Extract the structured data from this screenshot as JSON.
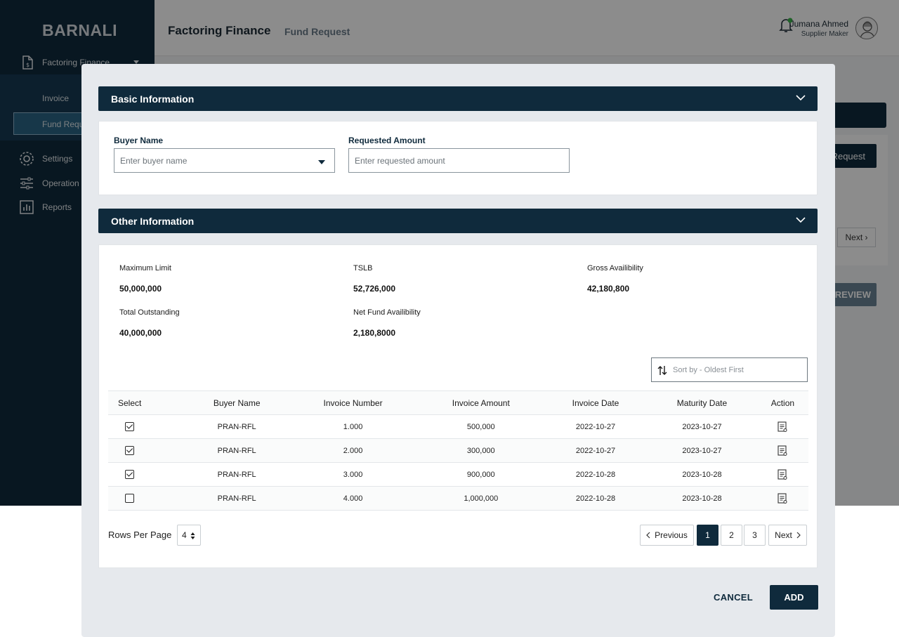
{
  "app": {
    "brand": "BARNALI",
    "title": "Factoring Finance",
    "subtitle": "Fund Request"
  },
  "sidebar": {
    "group_label": "Factoring Finance",
    "sub_items": [
      {
        "label": "Invoice"
      },
      {
        "label": "Fund Request"
      }
    ],
    "items": [
      {
        "label": "Settings",
        "icon": "gear-icon"
      },
      {
        "label": "Operation",
        "icon": "sliders-icon"
      },
      {
        "label": "Reports",
        "icon": "chart-icon"
      }
    ]
  },
  "user": {
    "name": "Jumana Ahmed",
    "role": "Supplier Maker",
    "notification_color": "#3ab54a"
  },
  "background": {
    "request_button": "Request",
    "next_button": "Next",
    "preview_button": "PREVIEW"
  },
  "modal": {
    "basic_section": {
      "title": "Basic Information",
      "buyer_name": {
        "label": "Buyer Name",
        "placeholder": "Enter buyer name"
      },
      "requested_amount": {
        "label": "Requested Amount",
        "placeholder": "Enter requested amount"
      }
    },
    "other_section": {
      "title": "Other Information",
      "stats": [
        {
          "label": "Maximum Limit",
          "value": "50,000,000"
        },
        {
          "label": "TSLB",
          "value": "52,726,000"
        },
        {
          "label": "Gross Availibility",
          "value": "42,180,800"
        },
        {
          "label": "Total Outstanding",
          "value": "40,000,000"
        },
        {
          "label": "Net Fund Availibility",
          "value": "2,180,8000"
        }
      ],
      "sort_placeholder": "Sort by - Oldest First",
      "table": {
        "columns": [
          "Select",
          "Buyer Name",
          "Invoice Number",
          "Invoice Amount",
          "Invoice Date",
          "Maturity Date",
          "Action"
        ],
        "rows": [
          {
            "selected": true,
            "buyer": "PRAN-RFL",
            "invoice_number": "1.000",
            "amount": "500,000",
            "invoice_date": "2022-10-27",
            "maturity_date": "2023-10-27"
          },
          {
            "selected": true,
            "buyer": "PRAN-RFL",
            "invoice_number": "2.000",
            "amount": "300,000",
            "invoice_date": "2022-10-27",
            "maturity_date": "2023-10-27"
          },
          {
            "selected": true,
            "buyer": "PRAN-RFL",
            "invoice_number": "3.000",
            "amount": "900,000",
            "invoice_date": "2022-10-28",
            "maturity_date": "2023-10-28"
          },
          {
            "selected": false,
            "buyer": "PRAN-RFL",
            "invoice_number": "4.000",
            "amount": "1,000,000",
            "invoice_date": "2022-10-28",
            "maturity_date": "2023-10-28"
          }
        ]
      },
      "rows_per_page_label": "Rows Per Page",
      "rows_per_page_value": "4",
      "pagination": {
        "previous": "Previous",
        "pages": [
          "1",
          "2",
          "3"
        ],
        "current": "1",
        "next": "Next"
      }
    },
    "cancel_label": "CANCEL",
    "add_label": "ADD"
  },
  "colors": {
    "primary": "#0f2a3c",
    "modal_bg": "#e6e9ed"
  }
}
